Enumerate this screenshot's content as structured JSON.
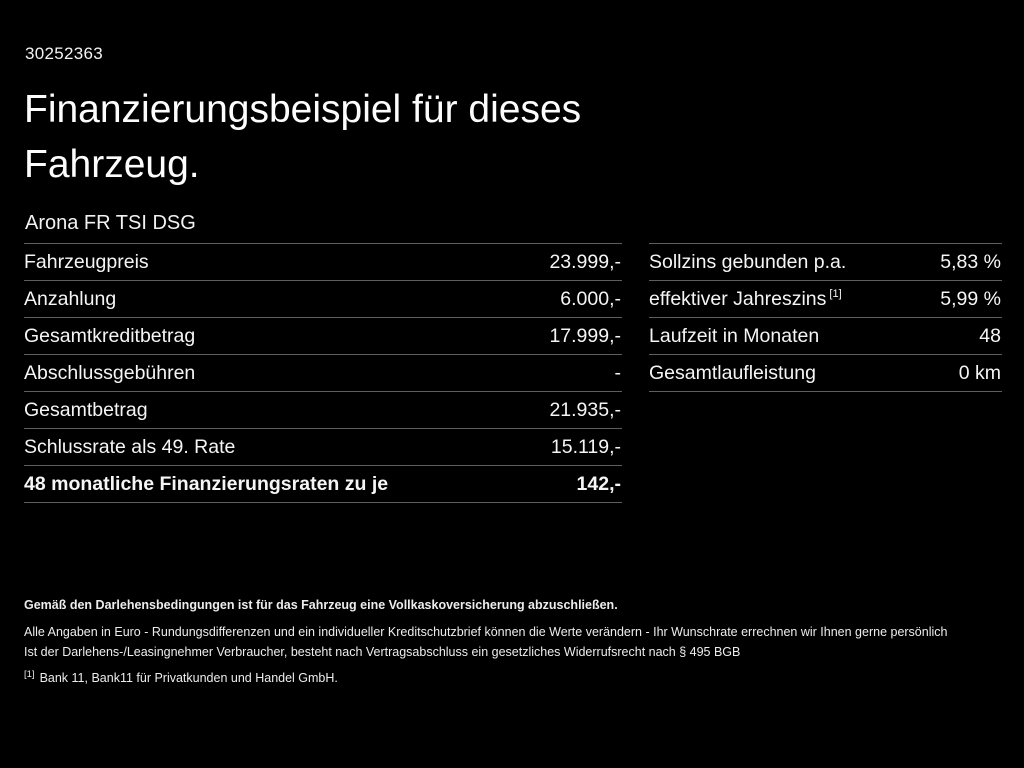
{
  "header": {
    "id": "30252363",
    "title_line1": "Finanzierungsbeispiel für dieses",
    "title_line2": "Fahrzeug.",
    "vehicle": "Arona FR TSI DSG"
  },
  "left_table": {
    "rows": [
      {
        "label": "Fahrzeugpreis",
        "value": "23.999,-"
      },
      {
        "label": "Anzahlung",
        "value": "6.000,-"
      },
      {
        "label": "Gesamtkreditbetrag",
        "value": "17.999,-"
      },
      {
        "label": "Abschlussgebühren",
        "value": "-"
      },
      {
        "label": "Gesamtbetrag",
        "value": "21.935,-"
      },
      {
        "label": "Schlussrate als 49. Rate",
        "value": "15.119,-"
      },
      {
        "label": "48 monatliche Finanzierungsraten zu je",
        "value": "142,-"
      }
    ]
  },
  "right_table": {
    "rows": [
      {
        "label": "Sollzins gebunden p.a.",
        "sup": "",
        "value": "5,83 %"
      },
      {
        "label": "effektiver Jahreszins",
        "sup": "[1]",
        "value": "5,99 %"
      },
      {
        "label": "Laufzeit in Monaten",
        "sup": "",
        "value": "48"
      },
      {
        "label": "Gesamtlaufleistung",
        "sup": "",
        "value": "0 km"
      }
    ]
  },
  "footer": {
    "line1": "Gemäß den Darlehensbedingungen ist für das Fahrzeug eine Vollkaskoversicherung abzuschließen.",
    "line2": "Alle Angaben in Euro - Rundungsdifferenzen und ein individueller Kreditschutzbrief können die Werte verändern - Ihr Wunschrate errechnen wir Ihnen gerne persönlich",
    "line3": "Ist der Darlehens-/Leasingnehmer Verbraucher, besteht nach Vertragsabschluss ein gesetzliches Widerrufsrecht nach § 495 BGB",
    "note_marker": "[1]",
    "line4": "Bank 11, Bank11 für Privatkunden und Handel GmbH."
  },
  "colors": {
    "background": "#000000",
    "text": "#ffffff",
    "divider": "#5e5e5e"
  }
}
